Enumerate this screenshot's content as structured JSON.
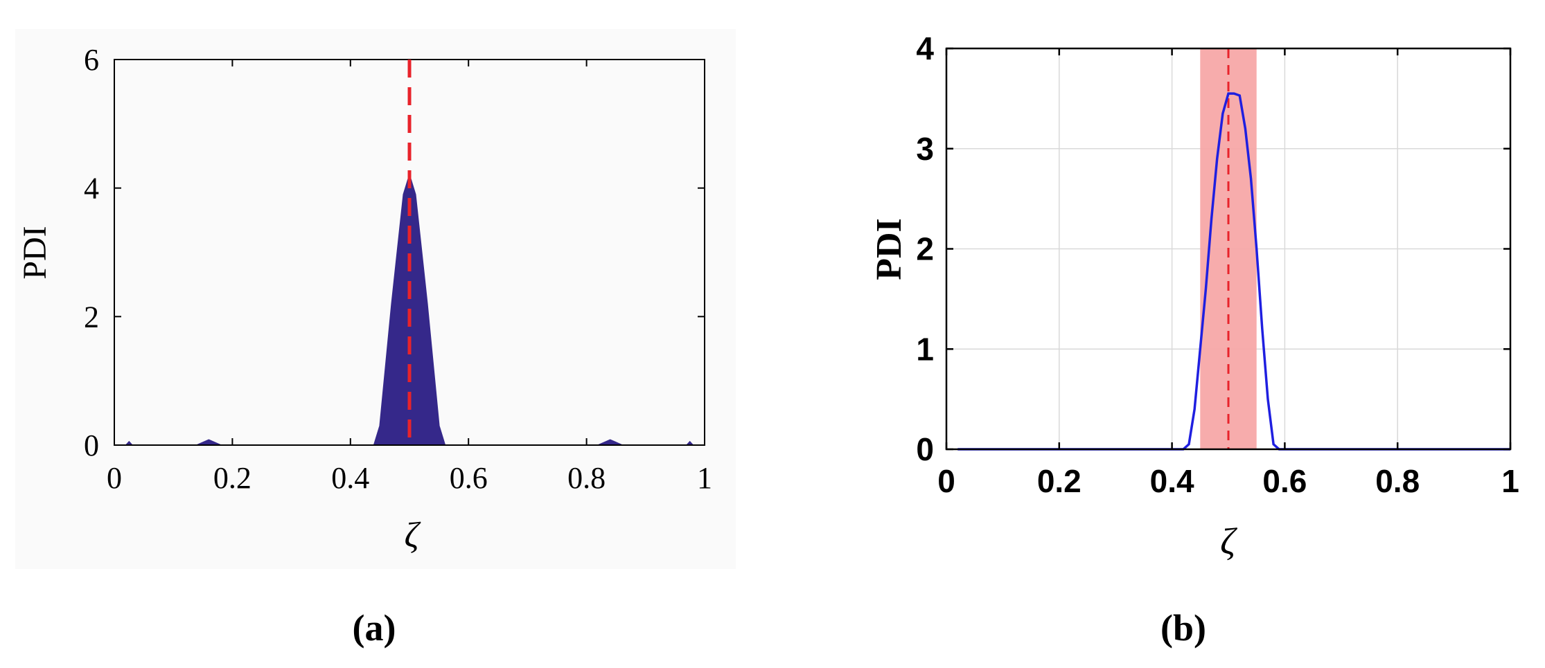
{
  "chart_data": [
    {
      "id": "a",
      "panel_label": "(a)",
      "type": "area",
      "xlabel": "ζ",
      "ylabel": "PDI",
      "xlim": [
        0,
        1
      ],
      "ylim": [
        0,
        6
      ],
      "xticks": [
        0,
        0.2,
        0.4,
        0.6,
        0.8,
        1
      ],
      "xtick_labels": [
        "0",
        "0.2",
        "0.4",
        "0.6",
        "0.8",
        "1"
      ],
      "yticks": [
        0,
        2,
        4,
        6
      ],
      "ytick_labels": [
        "0",
        "2",
        "4",
        "6"
      ],
      "grid": false,
      "series": [
        {
          "x": [
            0,
            0.02,
            0.025,
            0.03,
            0.14,
            0.16,
            0.18,
            0.44,
            0.45,
            0.47,
            0.49,
            0.5,
            0.51,
            0.53,
            0.55,
            0.56,
            0.82,
            0.84,
            0.86,
            0.97,
            0.975,
            0.98,
            1
          ],
          "y": [
            0,
            0,
            0.05,
            0,
            0,
            0.08,
            0,
            0,
            0.3,
            2.2,
            3.9,
            4.2,
            3.9,
            2.2,
            0.3,
            0,
            0,
            0.08,
            0,
            0,
            0.05,
            0,
            0
          ]
        }
      ],
      "reference_line_x": 0.5,
      "colors": {
        "fill": "#35288a",
        "ref": "#e8232b"
      }
    },
    {
      "id": "b",
      "panel_label": "(b)",
      "type": "line",
      "xlabel": "ζ",
      "ylabel": "PDI",
      "xlim": [
        0,
        1
      ],
      "ylim": [
        0,
        4
      ],
      "xticks": [
        0,
        0.2,
        0.4,
        0.6,
        0.8,
        1
      ],
      "xtick_labels": [
        "0",
        "0.2",
        "0.4",
        "0.6",
        "0.8",
        "1"
      ],
      "yticks": [
        0,
        1,
        2,
        3,
        4
      ],
      "ytick_labels": [
        "0",
        "1",
        "2",
        "3",
        "4"
      ],
      "grid": true,
      "series": [
        {
          "x": [
            0.02,
            0.42,
            0.43,
            0.44,
            0.45,
            0.46,
            0.47,
            0.48,
            0.49,
            0.5,
            0.51,
            0.52,
            0.53,
            0.54,
            0.55,
            0.56,
            0.57,
            0.58,
            0.59,
            0.6,
            1
          ],
          "y": [
            0,
            0,
            0.05,
            0.4,
            1.0,
            1.6,
            2.3,
            2.9,
            3.35,
            3.55,
            3.55,
            3.53,
            3.2,
            2.7,
            2.0,
            1.2,
            0.5,
            0.05,
            0,
            0,
            0
          ]
        }
      ],
      "shaded_band": [
        0.45,
        0.55
      ],
      "reference_line_x": 0.5,
      "colors": {
        "line": "#1f1fe0",
        "band": "#f7a8a8",
        "ref": "#e8232b",
        "grid": "#d9d9d9"
      }
    }
  ]
}
